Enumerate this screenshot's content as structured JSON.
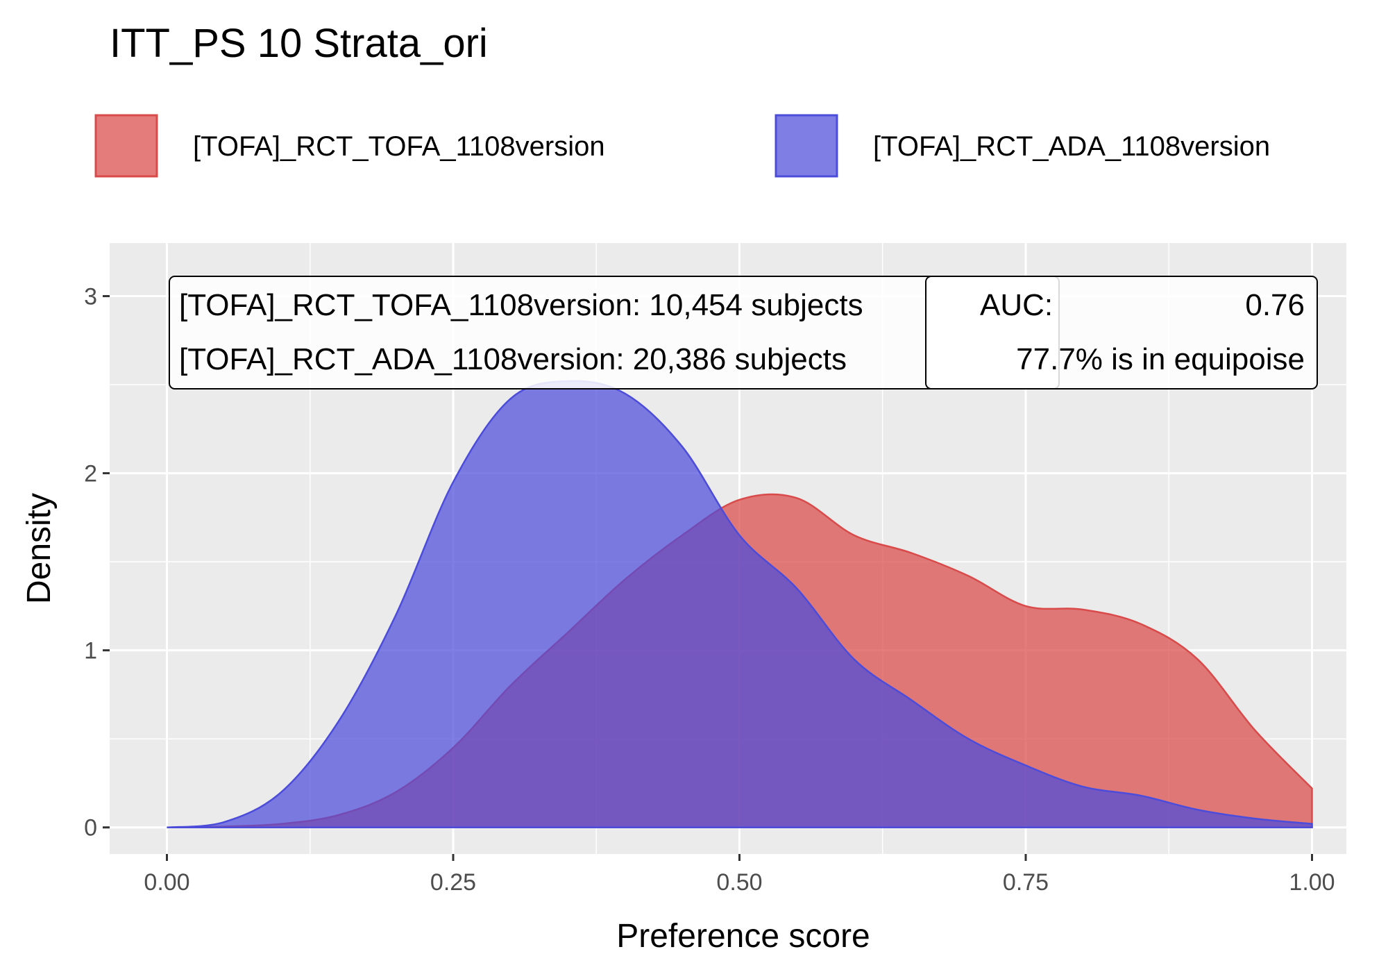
{
  "chart_data": {
    "type": "area",
    "title": "ITT_PS 10 Strata_ori",
    "xlabel": "Preference score",
    "ylabel": "Density",
    "xlim": [
      -0.05,
      1.03
    ],
    "ylim": [
      -0.15,
      3.3
    ],
    "x_ticks": [
      0.0,
      0.25,
      0.5,
      0.75,
      1.0
    ],
    "x_tick_labels": [
      "0.00",
      "0.25",
      "0.50",
      "0.75",
      "1.00"
    ],
    "y_ticks": [
      0,
      1,
      2,
      3
    ],
    "y_tick_labels": [
      "0",
      "1",
      "2",
      "3"
    ],
    "grid": true,
    "legend_position": "top",
    "background_color": "#ebebeb",
    "series": [
      {
        "name": "[TOFA]_RCT_TOFA_1108version",
        "color": "#d94a4a",
        "x": [
          0.0,
          0.05,
          0.1,
          0.15,
          0.2,
          0.25,
          0.3,
          0.35,
          0.4,
          0.45,
          0.5,
          0.55,
          0.6,
          0.65,
          0.7,
          0.75,
          0.8,
          0.85,
          0.9,
          0.95,
          1.0
        ],
        "y": [
          0.0,
          0.005,
          0.02,
          0.07,
          0.2,
          0.45,
          0.8,
          1.1,
          1.4,
          1.65,
          1.85,
          1.86,
          1.65,
          1.55,
          1.42,
          1.25,
          1.23,
          1.15,
          0.95,
          0.55,
          0.22
        ]
      },
      {
        "name": "[TOFA]_RCT_ADA_1108version",
        "color": "#4c4cdb",
        "x": [
          0.0,
          0.05,
          0.1,
          0.15,
          0.2,
          0.25,
          0.3,
          0.35,
          0.4,
          0.45,
          0.5,
          0.55,
          0.6,
          0.65,
          0.7,
          0.75,
          0.8,
          0.85,
          0.9,
          0.95,
          1.0
        ],
        "y": [
          0.0,
          0.03,
          0.2,
          0.6,
          1.2,
          1.95,
          2.42,
          2.52,
          2.45,
          2.15,
          1.65,
          1.35,
          0.95,
          0.72,
          0.5,
          0.35,
          0.23,
          0.18,
          0.1,
          0.05,
          0.02
        ]
      }
    ],
    "annotations": {
      "subjects_lines": [
        "[TOFA]_RCT_TOFA_1108version: 10,454 subjects",
        "[TOFA]_RCT_ADA_1108version: 20,386 subjects"
      ],
      "auc_label": "AUC:",
      "auc_value": "0.76",
      "equipoise": "77.7% is in equipoise"
    }
  }
}
